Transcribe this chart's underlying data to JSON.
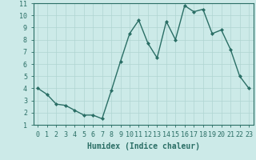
{
  "x": [
    0,
    1,
    2,
    3,
    4,
    5,
    6,
    7,
    8,
    9,
    10,
    11,
    12,
    13,
    14,
    15,
    16,
    17,
    18,
    19,
    20,
    21,
    22,
    23
  ],
  "y": [
    4.0,
    3.5,
    2.7,
    2.6,
    2.2,
    1.8,
    1.8,
    1.5,
    3.8,
    6.2,
    8.5,
    9.6,
    7.7,
    6.5,
    9.5,
    8.0,
    10.8,
    10.3,
    10.5,
    8.5,
    8.8,
    7.2,
    5.0,
    4.0
  ],
  "line_color": "#2a6e65",
  "marker": "D",
  "marker_size": 2,
  "linewidth": 1.0,
  "bg_color": "#cceae8",
  "grid_color": "#b0d5d2",
  "xlabel": "Humidex (Indice chaleur)",
  "xlabel_fontsize": 7,
  "tick_fontsize": 6,
  "xlim": [
    -0.5,
    23.5
  ],
  "ylim": [
    1,
    11
  ],
  "yticks": [
    1,
    2,
    3,
    4,
    5,
    6,
    7,
    8,
    9,
    10,
    11
  ],
  "xticks": [
    0,
    1,
    2,
    3,
    4,
    5,
    6,
    7,
    8,
    9,
    10,
    11,
    12,
    13,
    14,
    15,
    16,
    17,
    18,
    19,
    20,
    21,
    22,
    23
  ]
}
